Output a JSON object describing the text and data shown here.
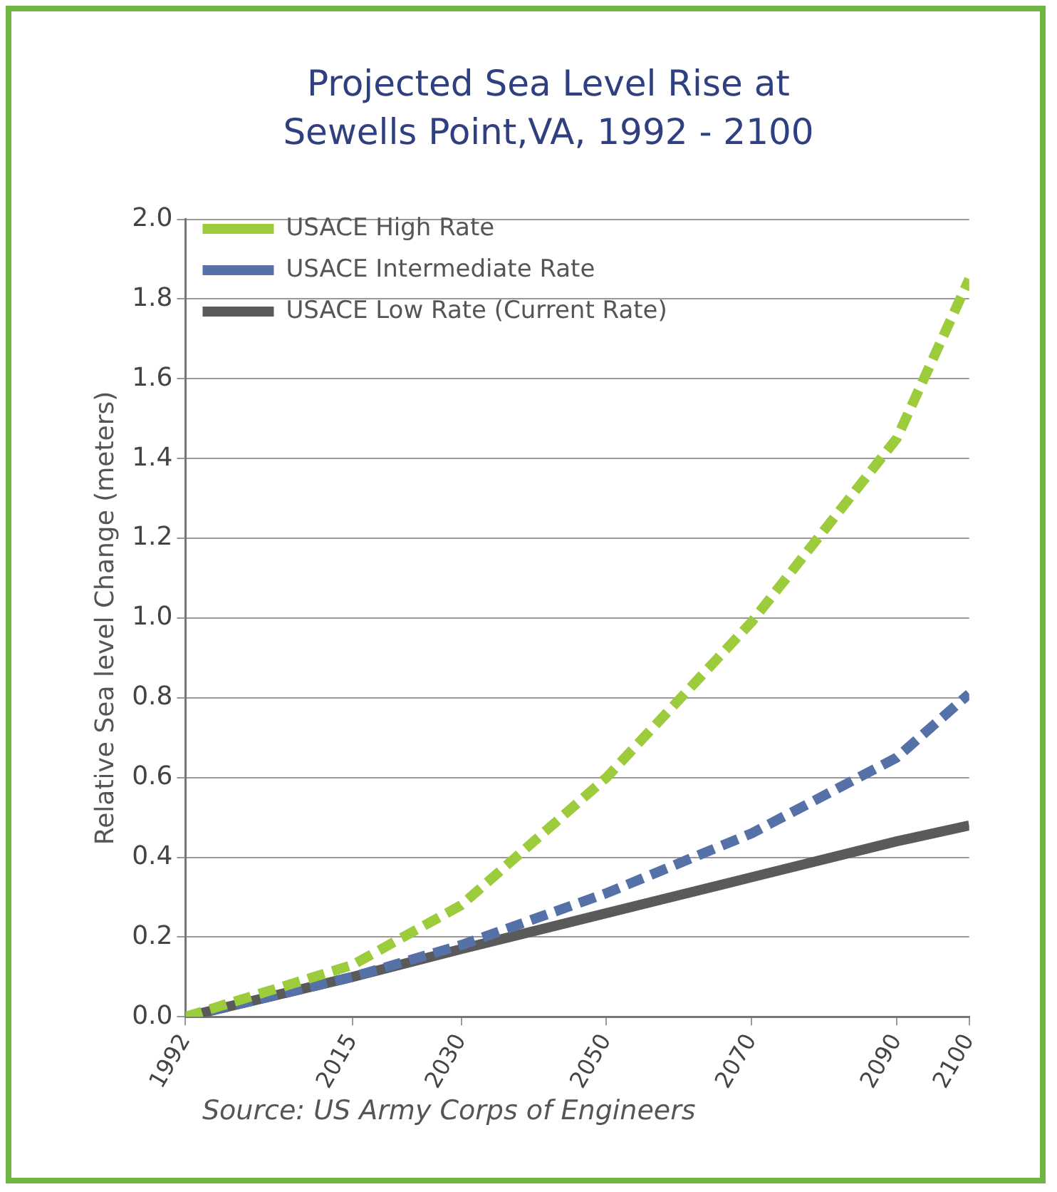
{
  "chart_data": {
    "type": "line",
    "title": "Projected Sea Level Rise at Sewells Point,VA, 1992 - 2100",
    "ylabel": "Relative Sea level Change (meters)",
    "x": [
      1992,
      2015,
      2030,
      2050,
      2070,
      2090,
      2100
    ],
    "series": [
      {
        "name": "USACE High Rate",
        "color": "#9ccb3b",
        "line_style": "dashed",
        "values": [
          0,
          0.13,
          0.28,
          0.6,
          0.99,
          1.45,
          1.85
        ]
      },
      {
        "name": "USACE Intermediate Rate",
        "color": "#5670a8",
        "line_style": "dashed",
        "values": [
          0,
          0.1,
          0.18,
          0.31,
          0.46,
          0.65,
          0.81
        ]
      },
      {
        "name": "USACE Low Rate (Current Rate)",
        "color": "#5a5a5a",
        "line_style": "solid",
        "values": [
          0,
          0.1,
          0.17,
          0.26,
          0.35,
          0.44,
          0.48
        ]
      }
    ],
    "xlim": [
      1992,
      2100
    ],
    "xticks": [
      1992,
      2015,
      2030,
      2050,
      2070,
      2090,
      2100
    ],
    "ylim": [
      0,
      2
    ],
    "yticks": [
      {
        "value": 0,
        "label": "0.0"
      },
      {
        "value": 0.2,
        "label": "0.2"
      },
      {
        "value": 0.4,
        "label": "0.4"
      },
      {
        "value": 0.6,
        "label": "0.6"
      },
      {
        "value": 0.8,
        "label": "0.8"
      },
      {
        "value": 1,
        "label": "1.0"
      },
      {
        "value": 1.2,
        "label": "1.2"
      },
      {
        "value": 1.4,
        "label": "1.4"
      },
      {
        "value": 1.6,
        "label": "1.6"
      },
      {
        "value": 1.8,
        "label": "1.8"
      },
      {
        "value": 2,
        "label": "2.0"
      }
    ],
    "grid": "y",
    "legend": "top left",
    "marker": "none",
    "annotations": [
      "Source: US Army Corps of Engineers"
    ]
  }
}
